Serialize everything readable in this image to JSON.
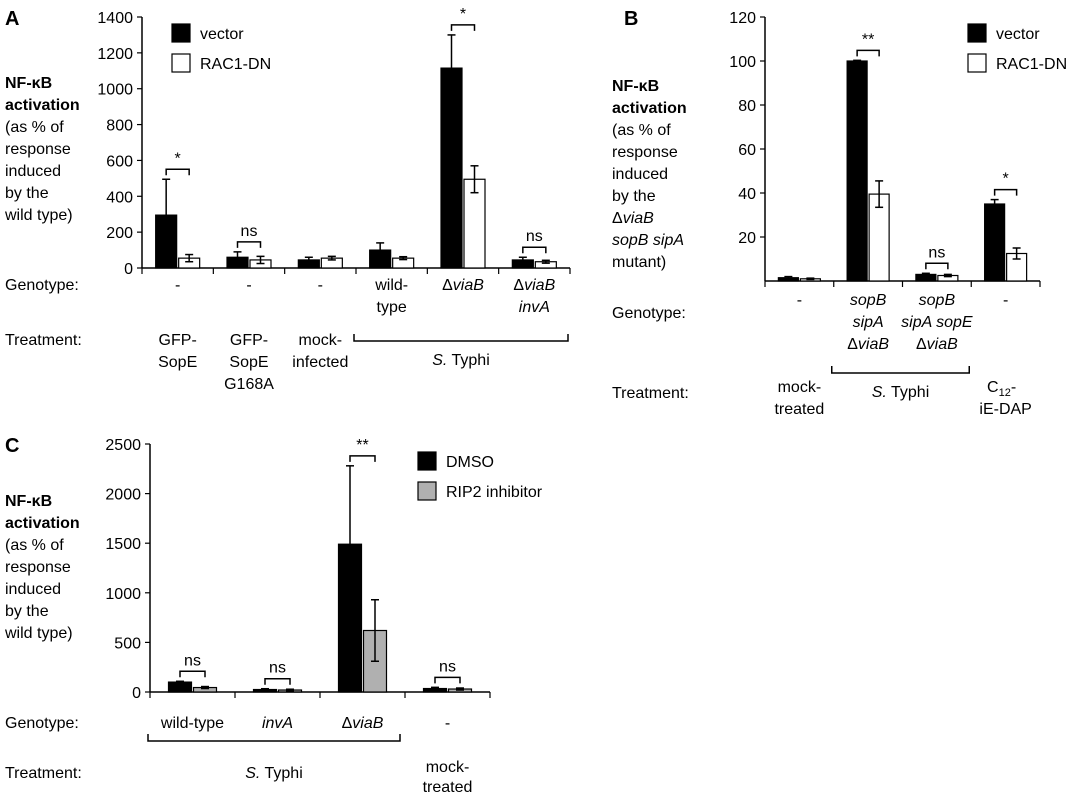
{
  "chart_data": [
    {
      "panel": "A",
      "type": "bar",
      "ylabel_bold": [
        "NF-κB",
        "activation"
      ],
      "ylabel": [
        "(as % of",
        "response",
        "induced",
        "by the",
        "wild type)"
      ],
      "ylim": [
        0,
        1400
      ],
      "yticks": [
        0,
        200,
        400,
        600,
        800,
        1000,
        1200,
        1400
      ],
      "series": [
        {
          "name": "vector",
          "color": "#000000",
          "values": [
            295,
            60,
            45,
            100,
            1115,
            45
          ],
          "errors": [
            200,
            30,
            15,
            40,
            185,
            15
          ]
        },
        {
          "name": "RAC1-DN",
          "color": "#ffffff",
          "values": [
            55,
            45,
            55,
            55,
            495,
            35
          ],
          "errors": [
            20,
            20,
            10,
            8,
            75,
            8
          ]
        }
      ],
      "significance": [
        "*",
        "ns",
        "",
        "",
        "*",
        "ns"
      ],
      "row_labels": {
        "genotype": "Genotype:",
        "treatment": "Treatment:"
      },
      "genotype": [
        [
          {
            "t": "-",
            "i": false
          }
        ],
        [
          {
            "t": "-",
            "i": false
          }
        ],
        [
          {
            "t": "-",
            "i": false
          }
        ],
        [
          {
            "t": "wild-",
            "i": false
          },
          {
            "t": "type",
            "i": false
          }
        ],
        [
          {
            "t": "Δ",
            "i": false,
            "s": "viaB",
            "si": true
          }
        ],
        [
          {
            "t": "Δ",
            "i": false,
            "s": "viaB",
            "si": true
          },
          {
            "t": "invA",
            "i": true
          }
        ]
      ],
      "treatment": [
        [
          "GFP-",
          "SopE"
        ],
        [
          "GFP-",
          "SopE",
          "G168A"
        ],
        [
          "mock-",
          "infected"
        ]
      ],
      "bracket_label": {
        "italic": "S.",
        "rest": " Typhi"
      }
    },
    {
      "panel": "B",
      "type": "bar",
      "ylabel_bold": [
        "NF-κB",
        "activation"
      ],
      "ylabel": [
        "(as % of",
        "response",
        "induced",
        "by the"
      ],
      "ylabel_italic_lines": [
        {
          "pre": "Δ",
          "it": "viaB"
        },
        {
          "pre": "",
          "it": "sopB sipA"
        }
      ],
      "ylabel_tail": "mutant)",
      "ylim": [
        0,
        120
      ],
      "yticks": [
        20,
        40,
        60,
        80,
        100,
        120
      ],
      "series": [
        {
          "name": "vector",
          "color": "#000000",
          "values": [
            1.5,
            100,
            3,
            35
          ],
          "errors": [
            0.5,
            0.3,
            0.5,
            2
          ]
        },
        {
          "name": "RAC1-DN",
          "color": "#ffffff",
          "values": [
            1,
            39.5,
            2.5,
            12.5
          ],
          "errors": [
            0.3,
            6,
            0.5,
            2.5
          ]
        }
      ],
      "significance": [
        "",
        "**",
        "ns",
        "*"
      ],
      "row_labels": {
        "genotype": "Genotype:",
        "treatment": "Treatment:"
      },
      "genotype": [
        [
          "-"
        ],
        [
          "sopB",
          "sipA",
          "ΔviaB"
        ],
        [
          "sopB",
          "sipA sopE",
          "ΔviaB"
        ],
        [
          "-"
        ]
      ],
      "treatment": {
        "first": [
          "mock-",
          "treated"
        ],
        "bracket": {
          "italic": "S.",
          "rest": " Typhi"
        },
        "last": {
          "pre": "C",
          "sub": "12",
          "post": "-",
          "line2": "iE-DAP"
        }
      }
    },
    {
      "panel": "C",
      "type": "bar",
      "ylabel_bold": [
        "NF-κB",
        "activation"
      ],
      "ylabel": [
        "(as % of",
        "response",
        "induced",
        "by the",
        "wild type)"
      ],
      "ylim": [
        0,
        2500
      ],
      "yticks": [
        0,
        500,
        1000,
        1500,
        2000,
        2500
      ],
      "series": [
        {
          "name": "DMSO",
          "color": "#000000",
          "values": [
            100,
            25,
            1490,
            35
          ],
          "errors": [
            8,
            8,
            790,
            12
          ]
        },
        {
          "name": "RIP2 inhibitor",
          "color": "#b0b0b0",
          "values": [
            45,
            20,
            620,
            30
          ],
          "errors": [
            10,
            8,
            310,
            10
          ]
        }
      ],
      "significance": [
        "ns",
        "ns",
        "**",
        "ns"
      ],
      "row_labels": {
        "genotype": "Genotype:",
        "treatment": "Treatment:"
      },
      "genotype": [
        {
          "t": "wild-type",
          "i": false
        },
        {
          "t": "invA",
          "i": true
        },
        {
          "t": "Δ",
          "i": false,
          "s": "viaB",
          "si": true
        },
        {
          "t": "-",
          "i": false
        }
      ],
      "treatment": {
        "bracket": {
          "italic": "S.",
          "rest": " Typhi"
        },
        "last": [
          "mock-",
          "treated"
        ]
      }
    }
  ]
}
